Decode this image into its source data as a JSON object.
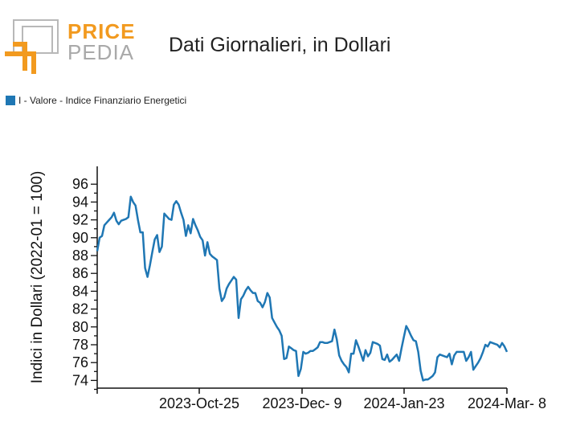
{
  "header": {
    "logo_line1": "PRICE",
    "logo_line2": "PEDIA",
    "title": "Dati Giornalieri, in Dollari"
  },
  "legend": {
    "label": "I - Valore - Indice Finanziario Energetici",
    "color": "#1f77b4"
  },
  "chart_data": {
    "type": "line",
    "title": "Dati Giornalieri, in Dollari",
    "ylabel": "Indici in Dollari (2022-01 = 100)",
    "xlabel": "",
    "ylim": [
      73,
      96.5
    ],
    "y_ticks": [
      74,
      76,
      78,
      80,
      82,
      84,
      86,
      88,
      90,
      92,
      94,
      96
    ],
    "x_tick_labels": [
      "2023-Oct-25",
      "2023-Dec- 9",
      "2024-Jan-23",
      "2024-Mar- 8"
    ],
    "legend_position": "top-left",
    "grid": false,
    "series": [
      {
        "name": "I - Valore - Indice Finanziario Energetici",
        "color": "#1f77b4",
        "values": [
          88.5,
          90.0,
          90.2,
          91.4,
          91.7,
          92.0,
          92.3,
          92.8,
          91.9,
          91.5,
          91.9,
          92.0,
          92.1,
          92.3,
          94.6,
          94.0,
          93.6,
          92.0,
          90.6,
          90.6,
          86.6,
          85.6,
          86.9,
          88.4,
          89.8,
          90.3,
          88.4,
          89.0,
          92.7,
          92.4,
          92.1,
          92.0,
          93.7,
          94.1,
          93.7,
          92.8,
          92.0,
          90.2,
          91.4,
          90.5,
          92.1,
          91.4,
          90.8,
          90.1,
          89.7,
          88.0,
          89.5,
          88.2,
          87.9,
          87.7,
          87.5,
          84.3,
          82.9,
          83.3,
          84.3,
          84.8,
          85.2,
          85.6,
          85.3,
          81.0,
          83.1,
          83.5,
          84.1,
          84.5,
          84.1,
          83.8,
          83.8,
          82.9,
          82.7,
          82.2,
          82.8,
          83.8,
          83.3,
          81.0,
          80.5,
          80.0,
          79.6,
          79.0,
          76.4,
          76.5,
          77.8,
          77.6,
          77.4,
          77.3,
          74.5,
          75.3,
          77.2,
          77.0,
          77.1,
          77.3,
          77.3,
          77.5,
          77.7,
          78.3,
          78.3,
          78.2,
          78.2,
          78.3,
          78.4,
          79.7,
          78.6,
          76.8,
          76.2,
          75.8,
          75.5,
          74.9,
          77.0,
          77.0,
          78.5,
          77.8,
          77.0,
          76.2,
          77.4,
          76.7,
          77.1,
          78.3,
          78.2,
          78.1,
          77.9,
          76.4,
          76.3,
          76.9,
          76.1,
          76.3,
          76.6,
          76.9,
          76.2,
          77.6,
          78.9,
          80.1,
          79.6,
          79.0,
          78.5,
          78.4,
          77.2,
          75.1,
          74.0,
          74.1,
          74.1,
          74.3,
          74.5,
          74.9,
          76.6,
          76.9,
          76.8,
          76.7,
          76.6,
          77.0,
          75.8,
          76.8,
          77.2,
          77.2,
          77.2,
          77.2,
          76.2,
          76.6,
          77.2,
          75.2,
          75.6,
          76.0,
          76.5,
          77.2,
          78.0,
          77.8,
          78.3,
          78.2,
          78.1,
          78.0,
          77.7,
          78.2,
          77.8,
          77.2
        ]
      }
    ]
  }
}
